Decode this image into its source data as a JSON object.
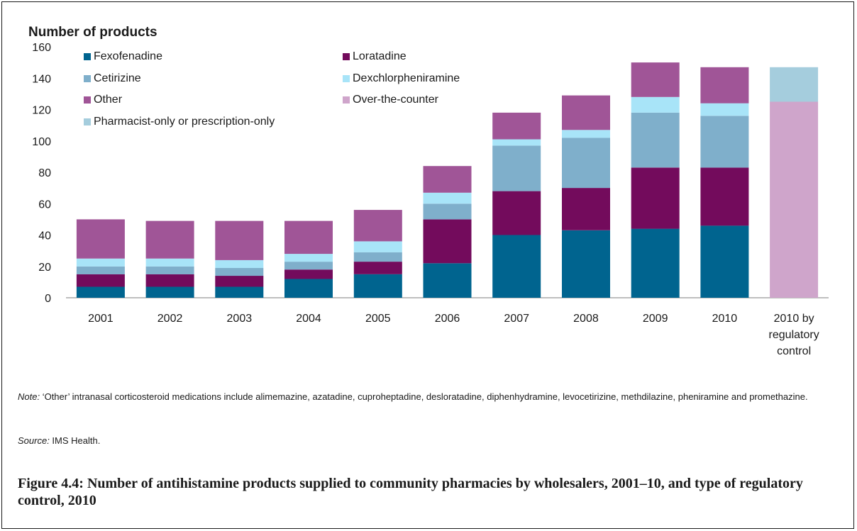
{
  "chart_data": {
    "type": "bar",
    "stacked": true,
    "ylabel": "Number of products",
    "xlabel": "",
    "ylim": [
      0,
      160
    ],
    "yticks": [
      0,
      20,
      40,
      60,
      80,
      100,
      120,
      140,
      160
    ],
    "grid": false,
    "legend_position": "top-left",
    "categories": [
      [
        "2001"
      ],
      [
        "2002"
      ],
      [
        "2003"
      ],
      [
        "2004"
      ],
      [
        "2005"
      ],
      [
        "2006"
      ],
      [
        "2007"
      ],
      [
        "2008"
      ],
      [
        "2009"
      ],
      [
        "2010"
      ],
      [
        "2010 by",
        "regulatory",
        "control"
      ]
    ],
    "series": [
      {
        "name": "Fexofenadine",
        "color": "#00648F",
        "values": [
          7,
          7,
          7,
          12,
          15,
          22,
          40,
          43,
          44,
          46,
          0
        ]
      },
      {
        "name": "Loratadine",
        "color": "#730B5C",
        "values": [
          8,
          8,
          7,
          6,
          8,
          28,
          28,
          27,
          39,
          37,
          0
        ]
      },
      {
        "name": "Cetirizine",
        "color": "#7FAFCB",
        "values": [
          5,
          5,
          5,
          5,
          6,
          10,
          29,
          32,
          35,
          33,
          0
        ]
      },
      {
        "name": "Dexchlorpheniramine",
        "color": "#A8E4F8",
        "values": [
          5,
          5,
          5,
          5,
          7,
          7,
          4,
          5,
          10,
          8,
          0
        ]
      },
      {
        "name": "Other",
        "color": "#A05597",
        "values": [
          25,
          24,
          25,
          21,
          20,
          17,
          17,
          22,
          22,
          23,
          0
        ]
      },
      {
        "name": "Over-the-counter",
        "color": "#CFA5CB",
        "values": [
          0,
          0,
          0,
          0,
          0,
          0,
          0,
          0,
          0,
          0,
          125
        ]
      },
      {
        "name": "Pharmacist-only or prescription-only",
        "color": "#A5CDDD",
        "values": [
          0,
          0,
          0,
          0,
          0,
          0,
          0,
          0,
          0,
          0,
          22
        ]
      }
    ]
  },
  "note": {
    "label": "Note:",
    "text": " ‘Other’ intranasal corticosteroid medications include alimemazine, azatadine, cuproheptadine, desloratadine, diphenhydramine, levocetirizine, methdilazine, pheniramine and promethazine."
  },
  "source": {
    "label": "Source:",
    "text": " IMS Health."
  },
  "caption": "Figure 4.4: Number of antihistamine products supplied to community pharmacies by wholesalers, 2001–10, and type of regulatory control, 2010"
}
